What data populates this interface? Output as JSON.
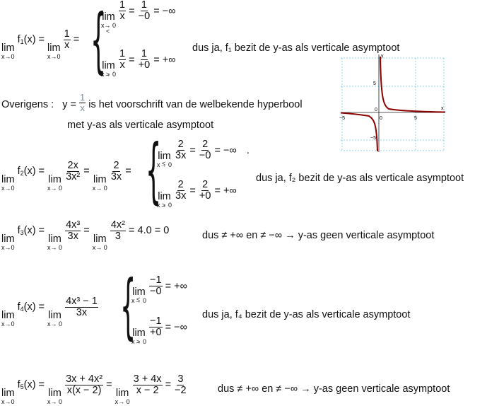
{
  "f1": {
    "lhs": "lim f₁(x) = lim",
    "lim": "lim",
    "sub": "x→0",
    "func": "f",
    "idx": "1",
    "frac_n": "1",
    "frac_d": "x",
    "case1_frac_n": "1",
    "case1_frac_d": "x",
    "case1_sub": "x→0",
    "case1_side": "<",
    "case1_eq_n": "1",
    "case1_eq_d": "−0",
    "case1_res": "= −∞",
    "case2_frac_n": "1",
    "case2_frac_d": "x",
    "case2_sub": "x→0",
    "case2_side": ">",
    "case2_eq_n": "1",
    "case2_eq_d": "+0",
    "case2_res": "= +∞",
    "conclusion": "dus ja, f₁ bezit de y-as als verticale asymptoot"
  },
  "note": {
    "line1_prefix": "Overigens :",
    "line1_eq": "y =",
    "line1_frac_n": "1",
    "line1_frac_d": "x",
    "line1_rest": "is  het voorschrift van de welbekende hyperbool",
    "line2": "met y-as als verticale asymptoot"
  },
  "graph": {
    "axis_x": "x",
    "axis_y": "y",
    "tick_neg5x": "−5",
    "tick_0": "0",
    "tick_5x": "5",
    "tick_5y": "5",
    "tick_neg5y": "−5"
  },
  "f2": {
    "dot": ".",
    "n1": "2x",
    "d1": "3x²",
    "n2": "2",
    "d2": "3x",
    "c1_n": "2",
    "c1_d": "3x",
    "c1_en": "2",
    "c1_ed": "−0",
    "c1_res": "= −∞",
    "c2_n": "2",
    "c2_d": "3x",
    "c2_en": "2",
    "c2_ed": "+0",
    "c2_res": "= +∞",
    "conclusion": "dus ja, f₂ bezit de y-as als verticale asymptoot"
  },
  "f3": {
    "n1": "4x³",
    "d1": "3x",
    "n2": "4x²",
    "d2": "3",
    "res": "= 4.0 = 0",
    "conclusion": "dus ≠ +∞  en ≠ −∞ →  y-as geen verticale asymptoot"
  },
  "f4": {
    "n1": "4x³ − 1",
    "d1": "3x",
    "c1_n": "−1",
    "c1_d": "−0",
    "c1_res": "= +∞",
    "c2_n": "−1",
    "c2_d": "+0",
    "c2_res": "= −∞",
    "conclusion": "dus ja, f₄ bezit de y-as als verticale asymptoot"
  },
  "f5": {
    "n1": "3x + 4x²",
    "d1": "x(x − 2)",
    "n2": "3 + 4x",
    "d2": "x − 2",
    "n3": "3",
    "d3": "−2",
    "conclusion": "dus ≠ +∞  en ≠ −∞ →  y-as geen verticale asymptoot"
  }
}
